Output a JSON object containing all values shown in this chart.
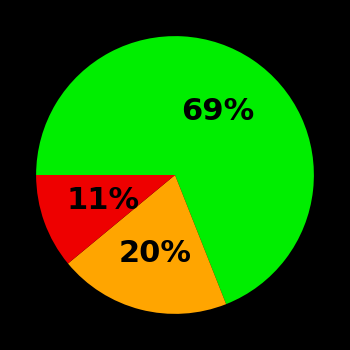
{
  "slices": [
    69,
    20,
    11
  ],
  "colors": [
    "#00ee00",
    "#ffa500",
    "#ee0000"
  ],
  "labels": [
    "69%",
    "20%",
    "11%"
  ],
  "background_color": "#000000",
  "startangle": 180,
  "counterclock": false,
  "figsize": [
    3.5,
    3.5
  ],
  "dpi": 100,
  "label_fontsize": 22,
  "label_fontweight": "bold",
  "label_radii": [
    0.55,
    0.58,
    0.55
  ]
}
